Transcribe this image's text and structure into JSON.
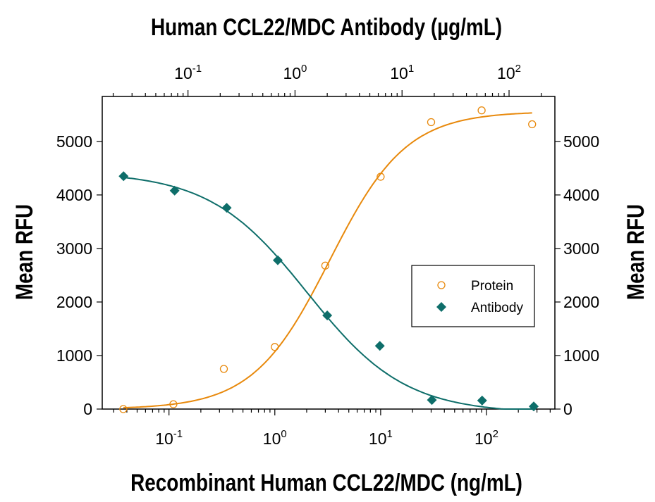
{
  "chart_data": {
    "type": "scatter",
    "top_title": "Human CCL22/MDC Antibody (µg/mL)",
    "xlabel": "Recombinant Human CCL22/MDC (ng/mL)",
    "ylabel_left": "Mean RFU",
    "ylabel_right": "Mean RFU",
    "x_scale": "log",
    "x_bottom_range": [
      0.0234,
      443
    ],
    "x_top_range": [
      0.0158,
      268
    ],
    "x_tick_labels": [
      {
        "base": "10",
        "exp": "-1",
        "value": 0.1
      },
      {
        "base": "10",
        "exp": "0",
        "value": 1
      },
      {
        "base": "10",
        "exp": "1",
        "value": 10
      },
      {
        "base": "10",
        "exp": "2",
        "value": 100
      }
    ],
    "ylim": [
      0,
      5840
    ],
    "y_ticks": [
      0,
      1000,
      2000,
      3000,
      4000,
      5000
    ],
    "grid": false,
    "legend_placement": "center-right",
    "series": [
      {
        "name": "Protein",
        "axis": "bottom",
        "marker": "open-circle",
        "color": "#e8890c",
        "x": [
          0.037,
          0.11,
          0.33,
          1,
          3,
          10,
          30,
          90,
          270
        ],
        "y": [
          0,
          90,
          750,
          1160,
          2680,
          4340,
          5360,
          5580,
          5320
        ],
        "fit": {
          "bottom": 0,
          "top": 5560,
          "ec50": 3.3,
          "hill": 1.2
        }
      },
      {
        "name": "Antibody",
        "axis": "top",
        "marker": "filled-diamond",
        "color": "#0e6e6a",
        "x": [
          0.025,
          0.075,
          0.23,
          0.69,
          2.0,
          6.2,
          19,
          56,
          170
        ],
        "y": [
          4350,
          4080,
          3760,
          2780,
          1750,
          1180,
          170,
          160,
          50
        ],
        "fit": {
          "bottom": -80,
          "top": 4430,
          "ec50": 1.3,
          "hill": 0.95
        }
      }
    ]
  }
}
